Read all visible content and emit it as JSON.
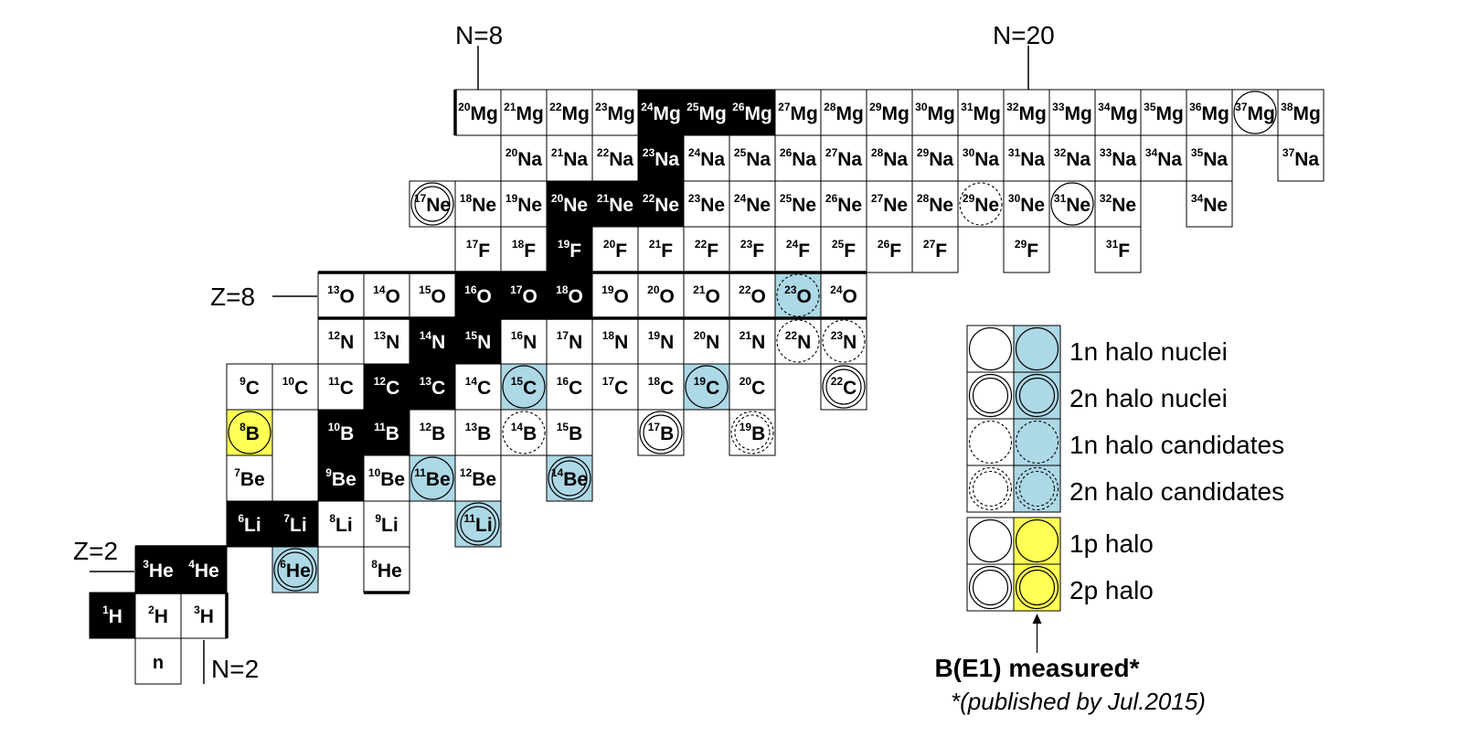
{
  "magic_labels": {
    "n8": "N=8",
    "n20": "N=20",
    "z8": "Z=8",
    "z2": "Z=2",
    "n2": "N=2"
  },
  "colors": {
    "stable_fill": "#000000",
    "halo_measured": "#add8e6",
    "proton_halo_measured": "#ffff55",
    "grid": "#000000"
  },
  "rows": [
    {
      "z": 12,
      "sym": "Mg",
      "cells": [
        {
          "a": "20",
          "n": 8
        },
        {
          "a": "21",
          "n": 9
        },
        {
          "a": "22",
          "n": 10
        },
        {
          "a": "23",
          "n": 11
        },
        {
          "a": "24",
          "n": 12,
          "stable": true
        },
        {
          "a": "25",
          "n": 13,
          "stable": true
        },
        {
          "a": "26",
          "n": 14,
          "stable": true
        },
        {
          "a": "27",
          "n": 15
        },
        {
          "a": "28",
          "n": 16
        },
        {
          "a": "29",
          "n": 17
        },
        {
          "a": "30",
          "n": 18
        },
        {
          "a": "31",
          "n": 19
        },
        {
          "a": "32",
          "n": 20
        },
        {
          "a": "33",
          "n": 21
        },
        {
          "a": "34",
          "n": 22
        },
        {
          "a": "35",
          "n": 23
        },
        {
          "a": "36",
          "n": 24
        },
        {
          "a": "37",
          "n": 25,
          "mark": "1n-halo"
        },
        {
          "a": "38",
          "n": 26
        }
      ]
    },
    {
      "z": 11,
      "sym": "Na",
      "cells": [
        {
          "a": "20",
          "n": 9
        },
        {
          "a": "21",
          "n": 10
        },
        {
          "a": "22",
          "n": 11
        },
        {
          "a": "23",
          "n": 12,
          "stable": true
        },
        {
          "a": "24",
          "n": 13
        },
        {
          "a": "25",
          "n": 14
        },
        {
          "a": "26",
          "n": 15
        },
        {
          "a": "27",
          "n": 16
        },
        {
          "a": "28",
          "n": 17
        },
        {
          "a": "29",
          "n": 18
        },
        {
          "a": "30",
          "n": 19
        },
        {
          "a": "31",
          "n": 20
        },
        {
          "a": "32",
          "n": 21
        },
        {
          "a": "33",
          "n": 22
        },
        {
          "a": "34",
          "n": 23
        },
        {
          "a": "35",
          "n": 24
        },
        {
          "a": "37",
          "n": 26
        }
      ]
    },
    {
      "z": 10,
      "sym": "Ne",
      "cells": [
        {
          "a": "17",
          "n": 7,
          "mark": "2p-halo"
        },
        {
          "a": "18",
          "n": 8
        },
        {
          "a": "19",
          "n": 9
        },
        {
          "a": "20",
          "n": 10,
          "stable": true
        },
        {
          "a": "21",
          "n": 11,
          "stable": true
        },
        {
          "a": "22",
          "n": 12,
          "stable": true
        },
        {
          "a": "23",
          "n": 13
        },
        {
          "a": "24",
          "n": 14
        },
        {
          "a": "25",
          "n": 15
        },
        {
          "a": "26",
          "n": 16
        },
        {
          "a": "27",
          "n": 17
        },
        {
          "a": "28",
          "n": 18
        },
        {
          "a": "29",
          "n": 19,
          "mark": "1n-cand"
        },
        {
          "a": "30",
          "n": 20
        },
        {
          "a": "31",
          "n": 21,
          "mark": "1n-halo"
        },
        {
          "a": "32",
          "n": 22
        },
        {
          "a": "34",
          "n": 24
        }
      ]
    },
    {
      "z": 9,
      "sym": "F",
      "cells": [
        {
          "a": "17",
          "n": 8
        },
        {
          "a": "18",
          "n": 9
        },
        {
          "a": "19",
          "n": 10,
          "stable": true
        },
        {
          "a": "20",
          "n": 11
        },
        {
          "a": "21",
          "n": 12
        },
        {
          "a": "22",
          "n": 13
        },
        {
          "a": "23",
          "n": 14
        },
        {
          "a": "24",
          "n": 15
        },
        {
          "a": "25",
          "n": 16
        },
        {
          "a": "26",
          "n": 17
        },
        {
          "a": "27",
          "n": 18
        },
        {
          "a": "29",
          "n": 20
        },
        {
          "a": "31",
          "n": 22
        }
      ]
    },
    {
      "z": 8,
      "sym": "O",
      "cells": [
        {
          "a": "13",
          "n": 5
        },
        {
          "a": "14",
          "n": 6
        },
        {
          "a": "15",
          "n": 7
        },
        {
          "a": "16",
          "n": 8,
          "stable": true
        },
        {
          "a": "17",
          "n": 9,
          "stable": true
        },
        {
          "a": "18",
          "n": 10,
          "stable": true
        },
        {
          "a": "19",
          "n": 11
        },
        {
          "a": "20",
          "n": 12
        },
        {
          "a": "21",
          "n": 13
        },
        {
          "a": "22",
          "n": 14
        },
        {
          "a": "23",
          "n": 15,
          "mark": "1n-cand",
          "measured": "blue"
        },
        {
          "a": "24",
          "n": 16
        }
      ]
    },
    {
      "z": 7,
      "sym": "N",
      "cells": [
        {
          "a": "12",
          "n": 5
        },
        {
          "a": "13",
          "n": 6
        },
        {
          "a": "14",
          "n": 7,
          "stable": true
        },
        {
          "a": "15",
          "n": 8,
          "stable": true
        },
        {
          "a": "16",
          "n": 9
        },
        {
          "a": "17",
          "n": 10
        },
        {
          "a": "18",
          "n": 11
        },
        {
          "a": "19",
          "n": 12
        },
        {
          "a": "20",
          "n": 13
        },
        {
          "a": "21",
          "n": 14
        },
        {
          "a": "22",
          "n": 15,
          "mark": "1n-cand"
        },
        {
          "a": "23",
          "n": 16,
          "mark": "1n-cand"
        }
      ]
    },
    {
      "z": 6,
      "sym": "C",
      "cells": [
        {
          "a": "9",
          "n": 3
        },
        {
          "a": "10",
          "n": 4
        },
        {
          "a": "11",
          "n": 5
        },
        {
          "a": "12",
          "n": 6,
          "stable": true
        },
        {
          "a": "13",
          "n": 7,
          "stable": true
        },
        {
          "a": "14",
          "n": 8
        },
        {
          "a": "15",
          "n": 9,
          "mark": "1n-halo",
          "measured": "blue"
        },
        {
          "a": "16",
          "n": 10
        },
        {
          "a": "17",
          "n": 11
        },
        {
          "a": "18",
          "n": 12
        },
        {
          "a": "19",
          "n": 13,
          "mark": "1n-halo",
          "measured": "blue"
        },
        {
          "a": "20",
          "n": 14
        },
        {
          "a": "22",
          "n": 16,
          "mark": "2n-halo"
        }
      ]
    },
    {
      "z": 5,
      "sym": "B",
      "cells": [
        {
          "a": "8",
          "n": 3,
          "mark": "1p-halo",
          "measured": "yellow"
        },
        {
          "a": "10",
          "n": 5,
          "stable": true
        },
        {
          "a": "11",
          "n": 6,
          "stable": true
        },
        {
          "a": "12",
          "n": 7
        },
        {
          "a": "13",
          "n": 8
        },
        {
          "a": "14",
          "n": 9,
          "mark": "1n-cand"
        },
        {
          "a": "15",
          "n": 10
        },
        {
          "a": "17",
          "n": 12,
          "mark": "2n-halo"
        },
        {
          "a": "19",
          "n": 14,
          "mark": "2n-cand"
        }
      ]
    },
    {
      "z": 4,
      "sym": "Be",
      "cells": [
        {
          "a": "7",
          "n": 3
        },
        {
          "a": "9",
          "n": 5,
          "stable": true
        },
        {
          "a": "10",
          "n": 6
        },
        {
          "a": "11",
          "n": 7,
          "mark": "1n-halo",
          "measured": "blue"
        },
        {
          "a": "12",
          "n": 8
        },
        {
          "a": "14",
          "n": 10,
          "mark": "2n-halo",
          "measured": "blue"
        }
      ]
    },
    {
      "z": 3,
      "sym": "Li",
      "cells": [
        {
          "a": "6",
          "n": 3,
          "stable": true
        },
        {
          "a": "7",
          "n": 4,
          "stable": true
        },
        {
          "a": "8",
          "n": 5
        },
        {
          "a": "9",
          "n": 6
        },
        {
          "a": "11",
          "n": 8,
          "mark": "2n-halo",
          "measured": "blue"
        }
      ]
    },
    {
      "z": 2,
      "sym": "He",
      "cells": [
        {
          "a": "3",
          "n": 1,
          "stable": true
        },
        {
          "a": "4",
          "n": 2,
          "stable": true
        },
        {
          "a": "6",
          "n": 4,
          "mark": "2n-halo",
          "measured": "blue"
        },
        {
          "a": "8",
          "n": 6
        }
      ]
    },
    {
      "z": 1,
      "sym": "H",
      "cells": [
        {
          "a": "1",
          "n": 0,
          "stable": true
        },
        {
          "a": "2",
          "n": 1
        },
        {
          "a": "3",
          "n": 2
        }
      ]
    },
    {
      "z": 0,
      "sym": "n",
      "cells": [
        {
          "a": "",
          "n": 1
        }
      ]
    }
  ],
  "legend": {
    "items": [
      {
        "label": "1n halo nuclei",
        "style": "1n-halo",
        "measured_color": "blue"
      },
      {
        "label": "2n halo nuclei",
        "style": "2n-halo",
        "measured_color": "blue"
      },
      {
        "label": "1n halo candidates",
        "style": "1n-cand",
        "measured_color": "blue"
      },
      {
        "label": "2n halo candidates",
        "style": "2n-cand",
        "measured_color": "blue"
      },
      {
        "label": "1p halo",
        "style": "1p-halo",
        "measured_color": "yellow"
      },
      {
        "label": "2p halo",
        "style": "2p-halo",
        "measured_color": "yellow"
      }
    ],
    "measured_label": "B(E1) measured*",
    "footnote": "*(published by Jul.2015)"
  }
}
